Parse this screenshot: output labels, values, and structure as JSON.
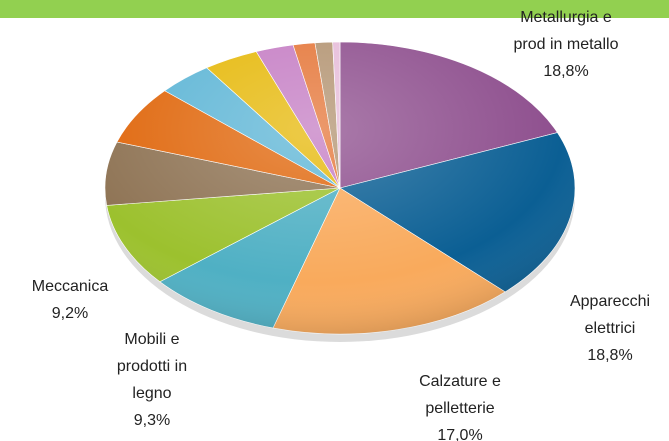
{
  "chart_data": {
    "type": "pie",
    "categories": [
      "Metallurgia e\nprod in metallo",
      "Apparecchi\nelettrici",
      "Calzature e\npelletterie",
      "Mobili e\nprodotti in\nlegno",
      "Meccanica",
      null,
      null,
      null,
      null,
      null,
      null,
      null,
      null
    ],
    "values": [
      18.8,
      18.8,
      17.0,
      9.3,
      9.2,
      7.0,
      6.5,
      3.8,
      3.8,
      2.6,
      1.5,
      1.2,
      0.5
    ],
    "value_labels": [
      "18,8%",
      "18,8%",
      "17,0%",
      "9,3%",
      "9,2%",
      null,
      null,
      null,
      null,
      null,
      null,
      null,
      null
    ],
    "colors": [
      "#8e4f8e",
      "#0b5f94",
      "#f9aa5c",
      "#4fb0c4",
      "#9cc12e",
      "#8f7455",
      "#e0680e",
      "#5fb6d6",
      "#e6b90c",
      "#c57ec4",
      "#e5773a",
      "#b39472",
      "#e6bcd9"
    ]
  }
}
